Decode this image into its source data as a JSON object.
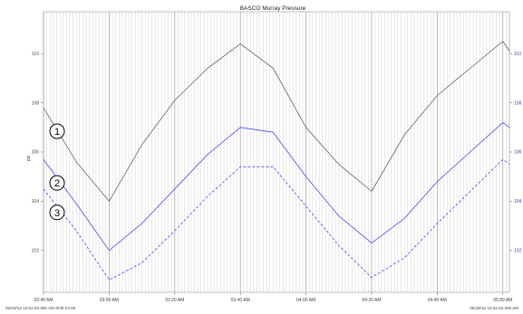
{
  "chart_data": {
    "type": "line",
    "title": "BASCO Murray Pressure",
    "ylabel": "psi",
    "ylabel_right": "",
    "ylim": [
      100.3,
      111.7
    ],
    "left_ticks": [
      {
        "value": 102,
        "label": "102"
      },
      {
        "value": 104,
        "label": "104"
      },
      {
        "value": 106,
        "label": "106"
      },
      {
        "value": 108,
        "label": "108"
      },
      {
        "value": 110,
        "label": "110"
      }
    ],
    "right_ticks": [
      {
        "value": 102,
        "label": "102"
      },
      {
        "value": 104,
        "label": "104"
      },
      {
        "value": 106,
        "label": "106"
      },
      {
        "value": 108,
        "label": "108"
      },
      {
        "value": 110,
        "label": "110"
      }
    ],
    "x_ticks": [
      {
        "value": 0,
        "label": "02:40 AM"
      },
      {
        "value": 20,
        "label": "03:00 AM"
      },
      {
        "value": 40,
        "label": "03:20 AM"
      },
      {
        "value": 60,
        "label": "03:40 AM"
      },
      {
        "value": 80,
        "label": "04:00 AM"
      },
      {
        "value": 100,
        "label": "04:20 AM"
      },
      {
        "value": 120,
        "label": "04:40 AM"
      },
      {
        "value": 140,
        "label": "05:00 AM"
      }
    ],
    "x_range": [
      0,
      142
    ],
    "grid": true,
    "footer_left": "03/29/16 10:02:30.000 AM Shift 04:08",
    "footer_right": "05/29/16 10:02:02.306 AM",
    "series": [
      {
        "badge": "1",
        "color": "#666666",
        "dashed": false,
        "x": [
          0,
          10,
          20,
          30,
          40,
          50,
          60,
          70,
          80,
          90,
          100,
          110,
          120,
          130,
          140,
          142
        ],
        "y": [
          107.8,
          105.6,
          104.0,
          106.3,
          108.1,
          109.4,
          110.4,
          109.4,
          107.0,
          105.5,
          104.4,
          106.7,
          108.3,
          109.4,
          110.5,
          110.1
        ]
      },
      {
        "badge": "2",
        "color": "#4a4af0",
        "dashed": false,
        "x": [
          0,
          10,
          20,
          30,
          40,
          50,
          60,
          70,
          80,
          90,
          100,
          110,
          120,
          130,
          140,
          142
        ],
        "y": [
          105.7,
          103.9,
          102.0,
          103.1,
          104.5,
          105.9,
          107.0,
          106.8,
          105.0,
          103.4,
          102.3,
          103.3,
          104.8,
          106.0,
          107.2,
          107.0
        ]
      },
      {
        "badge": "3",
        "color": "#4a4af0",
        "dashed": true,
        "x": [
          0,
          10,
          20,
          30,
          40,
          50,
          60,
          70,
          80,
          90,
          100,
          110,
          120,
          130,
          140,
          142
        ],
        "y": [
          104.5,
          102.8,
          100.8,
          101.5,
          102.8,
          104.2,
          105.4,
          105.4,
          103.8,
          102.2,
          100.9,
          101.7,
          103.1,
          104.4,
          105.7,
          105.5
        ]
      }
    ]
  }
}
